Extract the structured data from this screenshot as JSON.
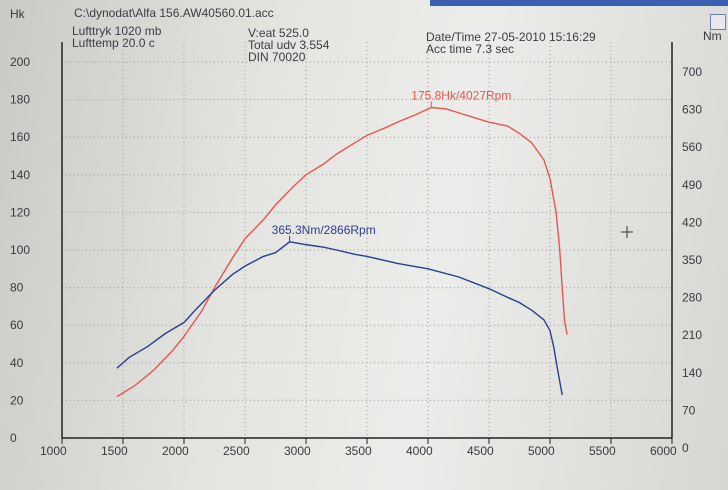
{
  "header": {
    "file_path": "C:\\dynodat\\Alfa 156.AW40560.01.acc",
    "lufttryk": "Lufttryk  1020 mb",
    "lufttemp": "Lufttemp  20.0 c",
    "vaeat": "V:eat     525.0",
    "total_udv": "Total udv 3.554",
    "din": "DIN 70020",
    "date_time": "Date/Time 27-05-2010 15:16:29",
    "acc_time": "Acc time  7.3 sec"
  },
  "colors": {
    "power": "#e8564e",
    "torque": "#2a3f8f",
    "axis": "#222222",
    "grid": "#9a9a9a"
  },
  "chart_data": {
    "type": "line",
    "title": "",
    "xlabel": "",
    "ylabel_left": "Hk",
    "ylabel_right": "Nm",
    "xlim": [
      1000,
      6000
    ],
    "ylim_left": [
      0,
      200
    ],
    "ylim_right": [
      0,
      700
    ],
    "grid": true,
    "x_ticks": [
      "1000",
      "1500",
      "2000",
      "2500",
      "3000",
      "3500",
      "4000",
      "4500",
      "5000",
      "5500",
      "6000"
    ],
    "y_ticks_left": [
      "0",
      "20",
      "40",
      "60",
      "80",
      "100",
      "120",
      "140",
      "160",
      "180",
      "200"
    ],
    "y_ticks_right": [
      "0",
      "70",
      "140",
      "210",
      "280",
      "350",
      "420",
      "490",
      "560",
      "630",
      "700"
    ],
    "series": [
      {
        "axis": "left",
        "color": "#e8564e",
        "x": [
          1450,
          1600,
          1750,
          1900,
          2000,
          2150,
          2250,
          2400,
          2500,
          2650,
          2750,
          2900,
          3000,
          3150,
          3250,
          3400,
          3500,
          3650,
          3750,
          3900,
          4027,
          4150,
          4250,
          4400,
          4500,
          4650,
          4750,
          4850,
          4950,
          5000,
          5050,
          5080,
          5100,
          5120,
          5140
        ],
        "y": [
          22,
          28,
          36,
          46,
          54,
          68,
          80,
          96,
          106,
          116,
          124,
          134,
          140,
          146,
          151,
          157,
          161,
          165,
          168,
          172,
          175.8,
          175,
          173,
          170,
          168,
          166,
          162,
          157,
          148,
          138,
          120,
          100,
          80,
          62,
          55
        ],
        "peak_label": "175.8Hk/4027Rpm"
      },
      {
        "axis": "right",
        "color": "#2a3f8f",
        "x": [
          1450,
          1550,
          1700,
          1850,
          2000,
          2100,
          2250,
          2400,
          2500,
          2650,
          2750,
          2866,
          3000,
          3150,
          3250,
          3400,
          3500,
          3750,
          4000,
          4250,
          4500,
          4650,
          4750,
          4850,
          4950,
          5000,
          5030,
          5060,
          5080,
          5100
        ],
        "y": [
          130,
          150,
          170,
          195,
          215,
          240,
          275,
          305,
          320,
          338,
          345,
          365.3,
          360,
          355,
          350,
          342,
          338,
          325,
          315,
          300,
          278,
          262,
          252,
          238,
          220,
          200,
          170,
          130,
          105,
          80
        ],
        "peak_label": "365.3Nm/2866Rpm"
      }
    ]
  }
}
